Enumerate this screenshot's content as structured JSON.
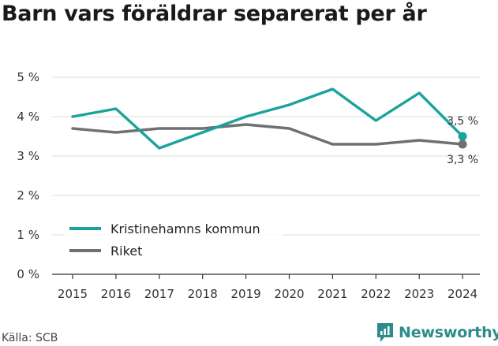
{
  "title": "Barn vars föräldrar separerat per år",
  "source": "Källa: SCB",
  "brand": {
    "name": "Newsworthy",
    "icon": "newsworthy-logo-icon"
  },
  "colors": {
    "kommun": "#1aa39a",
    "riket": "#6f6f74",
    "grid": "#dddddd",
    "axis": "#333333"
  },
  "chart_data": {
    "type": "line",
    "x": [
      2015,
      2016,
      2017,
      2018,
      2019,
      2020,
      2021,
      2022,
      2023,
      2024
    ],
    "series": [
      {
        "name": "Kristinehamns kommun",
        "values": [
          4.0,
          4.2,
          3.2,
          3.6,
          4.0,
          4.3,
          4.7,
          3.9,
          4.6,
          3.5
        ],
        "color": "#1aa39a"
      },
      {
        "name": "Riket",
        "values": [
          3.7,
          3.6,
          3.7,
          3.7,
          3.8,
          3.7,
          3.3,
          3.3,
          3.4,
          3.3
        ],
        "color": "#6f6f74"
      }
    ],
    "ylim": [
      0,
      5
    ],
    "yticks": [
      "0 %",
      "1 %",
      "2 %",
      "3 %",
      "4 %",
      "5 %"
    ],
    "xticks": [
      "2015",
      "2016",
      "2017",
      "2018",
      "2019",
      "2020",
      "2021",
      "2022",
      "2023",
      "2024"
    ],
    "end_labels": [
      "3,5 %",
      "3,3 %"
    ],
    "grid": true,
    "legend_position": "bottom-left"
  }
}
